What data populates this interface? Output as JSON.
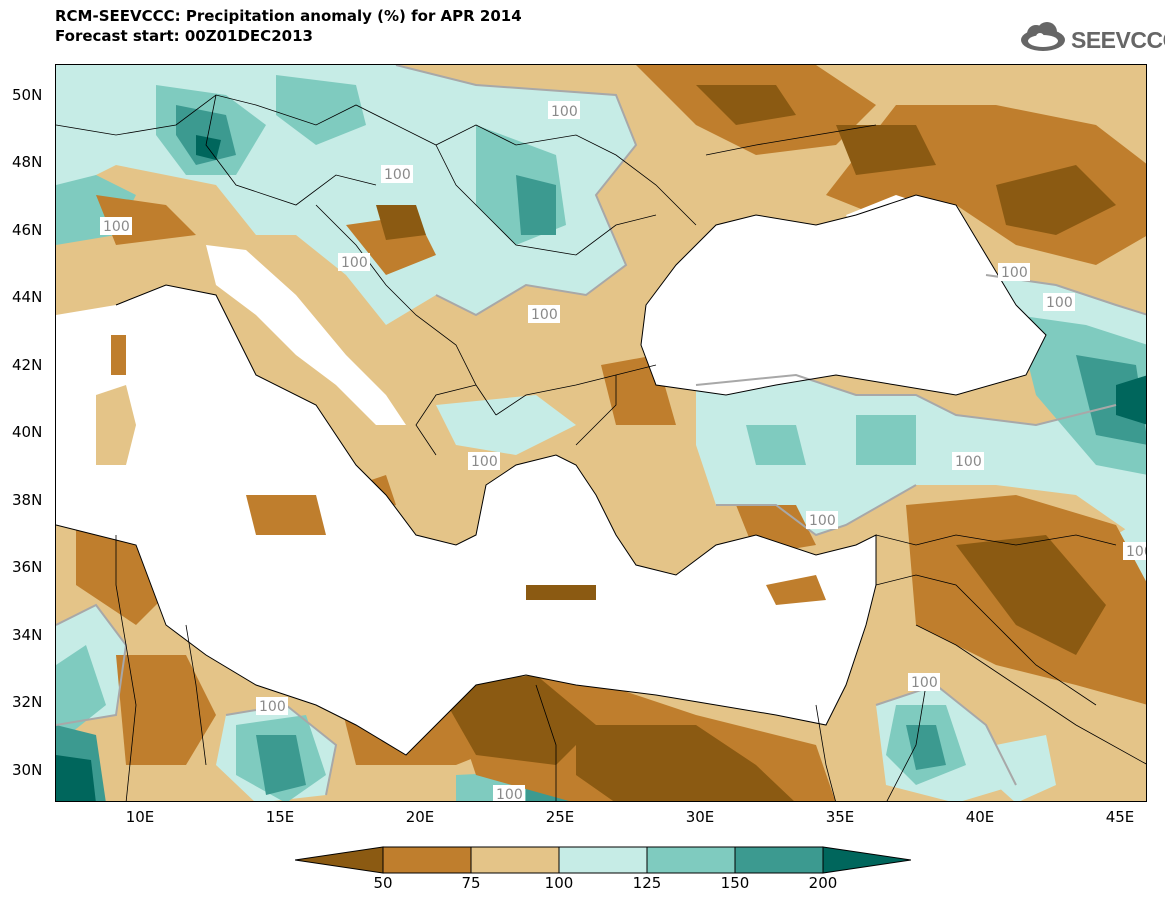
{
  "header": {
    "title_line1": "RCM-SEEVCCC: Precipitation anomaly (%) for APR 2014",
    "title_line2": "Forecast start: 00Z01DEC2013"
  },
  "logo": {
    "text": "SEEVCCC",
    "icon": "cloud-icon"
  },
  "map": {
    "lat_labels": [
      "50N",
      "48N",
      "46N",
      "44N",
      "42N",
      "40N",
      "38N",
      "36N",
      "34N",
      "32N",
      "30N"
    ],
    "lon_labels": [
      "10E",
      "15E",
      "20E",
      "25E",
      "30E",
      "35E",
      "40E",
      "45E"
    ],
    "contour_label": "100"
  },
  "colorbar": {
    "levels": [
      "50",
      "75",
      "100",
      "125",
      "150",
      "200"
    ],
    "colors": [
      "#8b5a12",
      "#bf7e2d",
      "#e4c488",
      "#c6ece6",
      "#7fcbbf",
      "#3c9a90",
      "#00665c"
    ]
  }
}
